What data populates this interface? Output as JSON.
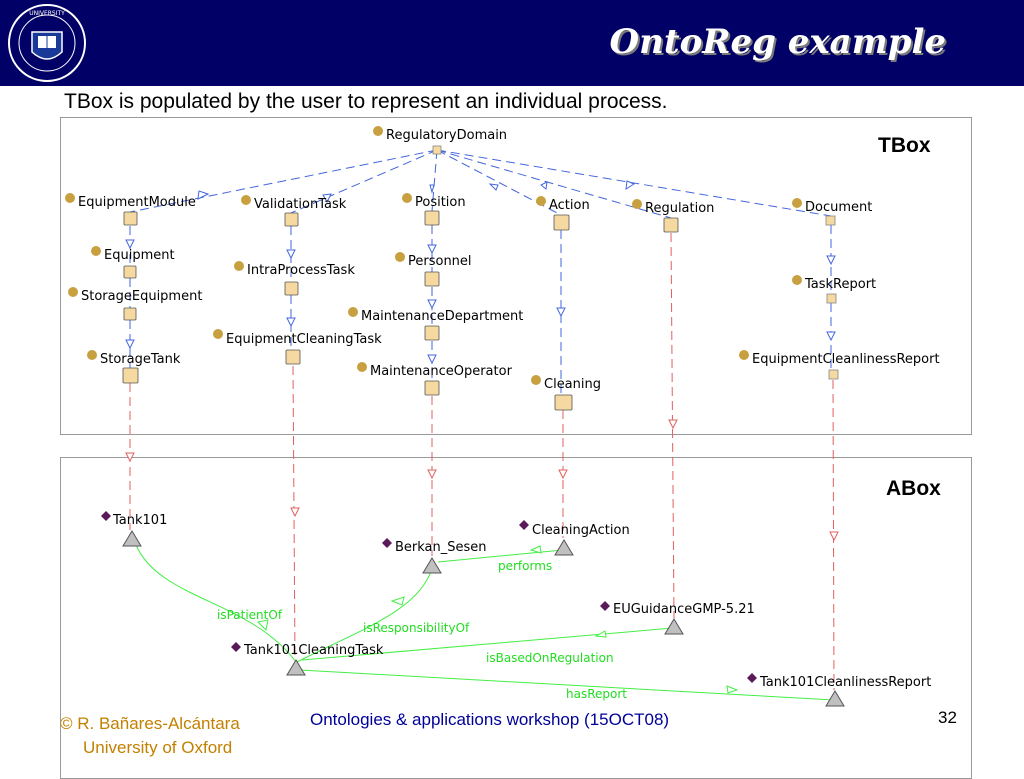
{
  "slide": {
    "title": "OntoReg example",
    "subtitle": "TBox is populated by the user to represent an individual process."
  },
  "tbox": {
    "label": "TBox",
    "classes": {
      "regulatory_domain": "RegulatoryDomain",
      "equipment_module": "EquipmentModule",
      "validation_task": "ValidationTask",
      "position": "Position",
      "action": "Action",
      "regulation": "Regulation",
      "document": "Document",
      "equipment": "Equipment",
      "intra_process_task": "IntraProcessTask",
      "personnel": "Personnel",
      "task_report": "TaskReport",
      "storage_equipment": "StorageEquipment",
      "maintenance_department": "MaintenanceDepartment",
      "equipment_cleaning_task": "EquipmentCleaningTask",
      "storage_tank": "StorageTank",
      "maintenance_operator": "MaintenanceOperator",
      "equipment_cleanliness_report": "EquipmentCleanlinessReport",
      "cleaning": "Cleaning"
    }
  },
  "abox": {
    "label": "ABox",
    "individuals": {
      "tank101": "Tank101",
      "cleaning_action": "CleaningAction",
      "berkan_sesen": "Berkan_Sesen",
      "eu_guidance": "EUGuidanceGMP-5.21",
      "tank101_cleaning_task": "Tank101CleaningTask",
      "tank101_cleanliness_report": "Tank101CleanlinessReport"
    },
    "relations": {
      "performs": "performs",
      "is_patient_of": "isPatientOf",
      "is_responsibility_of": "isResponsibilityOf",
      "is_based_on_regulation": "isBasedOnRegulation",
      "has_report": "hasReport"
    }
  },
  "footer": {
    "copyright": "© R. Bañares-Alcántara",
    "affiliation": "University of Oxford",
    "event": "Ontologies & applications workshop (15OCT08)",
    "page_number": "32"
  },
  "colors": {
    "header_bg": "#000066",
    "class_dot": "#c8a040",
    "class_box": "#f5d9a0",
    "is_a_edge": "#3355dd",
    "instance_edge": "#e05050",
    "relation_edge": "#33dd33",
    "individual_diamond": "#5a1a5a",
    "footer_text": "#c48000"
  }
}
